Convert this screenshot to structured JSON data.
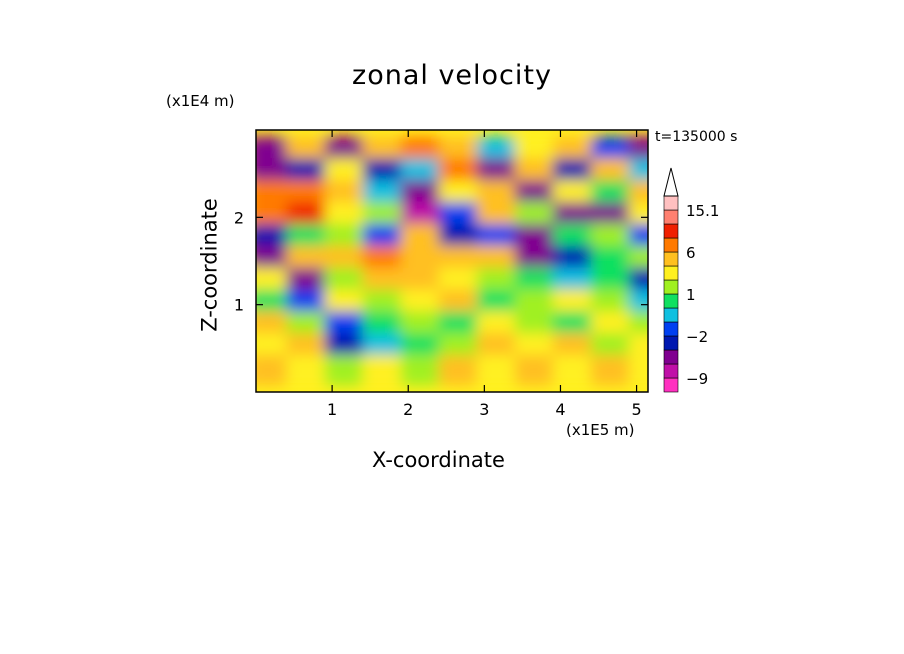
{
  "chart_data": {
    "type": "heatmap",
    "title": "zonal velocity",
    "xlabel": "X-coordinate",
    "ylabel": "Z-coordinate",
    "x_unit": "(x1E5 m)",
    "z_unit": "(x1E4 m)",
    "time_label": "t=135000 s",
    "xlim": [
      0,
      5.15
    ],
    "ylim": [
      0,
      3.0
    ],
    "x_ticks": [
      1,
      2,
      3,
      4,
      5
    ],
    "y_ticks": [
      1,
      2
    ],
    "colorbar": {
      "levels": [
        -12,
        -9,
        -6,
        -3,
        -2,
        -1,
        0,
        1,
        2,
        3,
        6,
        9,
        12,
        15.1
      ],
      "labels": [
        {
          "value": 15.1,
          "text": "15.1"
        },
        {
          "value": 6,
          "text": "6"
        },
        {
          "value": 1,
          "text": "1"
        },
        {
          "value": -2,
          "text": "−2"
        },
        {
          "value": -9,
          "text": "−9"
        }
      ],
      "colors": [
        "#ff30c0",
        "#c010a8",
        "#800090",
        "#0018b0",
        "#0040f0",
        "#10c0e0",
        "#10e060",
        "#a0f020",
        "#fff020",
        "#ffc020",
        "#ff7a00",
        "#f02000",
        "#ff8070",
        "#ffc0c0"
      ]
    },
    "field": {
      "description_free": true,
      "columns_x": [
        0.0,
        0.5,
        1.0,
        1.5,
        2.0,
        2.5,
        3.0,
        3.5,
        4.0,
        4.5,
        5.0
      ],
      "rows_z": [
        2.75,
        2.5,
        2.25,
        2.0,
        1.75,
        1.5,
        1.25,
        1.0,
        0.75,
        0.5,
        0.25
      ],
      "values": [
        [
          -4,
          3,
          -5,
          5,
          6,
          3,
          -1,
          2,
          5,
          -2,
          -4
        ],
        [
          -5,
          -3,
          2,
          -3,
          -1,
          8,
          -4,
          3,
          -3,
          4,
          -1
        ],
        [
          6,
          7,
          4,
          -1,
          -6,
          2,
          5,
          -4,
          2,
          0,
          3
        ],
        [
          8,
          9,
          2,
          1,
          -7,
          -2,
          3,
          1,
          -5,
          -4,
          2
        ],
        [
          -3,
          0,
          1,
          -2,
          4,
          -3,
          -2,
          -6,
          0,
          1,
          -2
        ],
        [
          -5,
          3,
          5,
          6,
          3,
          5,
          3,
          -5,
          -3,
          0,
          1
        ],
        [
          2,
          -4,
          1,
          4,
          3,
          2,
          1,
          0,
          -1,
          0,
          -3
        ],
        [
          0,
          -2,
          2,
          1,
          2,
          3,
          0,
          1,
          2,
          1,
          -1
        ],
        [
          3,
          1,
          -2,
          0,
          1,
          0,
          2,
          1,
          0,
          2,
          1
        ],
        [
          2,
          3,
          -3,
          -1,
          0,
          1,
          3,
          2,
          3,
          1,
          2
        ],
        [
          3,
          2,
          1,
          2,
          1,
          3,
          2,
          3,
          2,
          3,
          2
        ]
      ]
    }
  }
}
